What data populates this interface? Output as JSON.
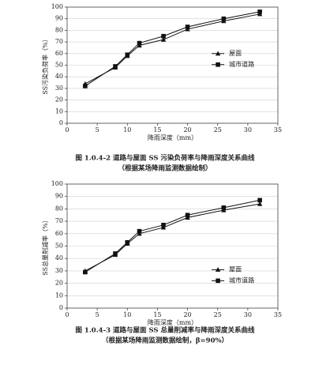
{
  "chart_data": [
    {
      "type": "line",
      "title": "图 1.0.4-2  道路与屋面 SS 污染负荷率与降雨深度关系曲线",
      "subtitle": "（根据某场降雨监测数据绘制）",
      "x_label": "降雨深度（mm）",
      "y_label": "SS污染负荷率（%）",
      "xlim": [
        0,
        35
      ],
      "xticks": [
        0,
        5,
        10,
        15,
        20,
        25,
        30,
        35
      ],
      "ylim": [
        0,
        100
      ],
      "yticks": [
        0,
        10,
        20,
        30,
        40,
        50,
        60,
        70,
        80,
        90,
        100
      ],
      "grid": true,
      "x": [
        3,
        8,
        10,
        12,
        16,
        20,
        26,
        32
      ],
      "series": [
        {
          "name": "屋面",
          "color": "#111111",
          "marker": "triangle",
          "values": [
            34,
            48,
            58,
            67,
            72,
            81,
            88,
            94
          ]
        },
        {
          "name": "城市道路",
          "color": "#111111",
          "marker": "square",
          "values": [
            32,
            49,
            59,
            69,
            75,
            83,
            90,
            96
          ]
        }
      ]
    },
    {
      "type": "line",
      "title": "图 1.0.4-3  道路与屋面 SS 总量削减率与降雨深度关系曲线",
      "subtitle": "（根据某场降雨监测数据绘制，β=90%）",
      "x_label": "降雨深度（mm）",
      "y_label": "SS总量削减率（%）",
      "xlim": [
        0,
        35
      ],
      "xticks": [
        0,
        5,
        10,
        15,
        20,
        25,
        30,
        35
      ],
      "ylim": [
        0,
        100
      ],
      "yticks": [
        0,
        10,
        20,
        30,
        40,
        50,
        60,
        70,
        80,
        90,
        100
      ],
      "grid": true,
      "x": [
        3,
        8,
        10,
        12,
        16,
        20,
        26,
        32
      ],
      "series": [
        {
          "name": "屋面",
          "color": "#111111",
          "marker": "triangle",
          "values": [
            30,
            43,
            52,
            60,
            65,
            73,
            79,
            84
          ]
        },
        {
          "name": "城市道路",
          "color": "#111111",
          "marker": "square",
          "values": [
            29,
            44,
            53,
            62,
            67,
            75,
            81,
            87
          ]
        }
      ]
    }
  ]
}
